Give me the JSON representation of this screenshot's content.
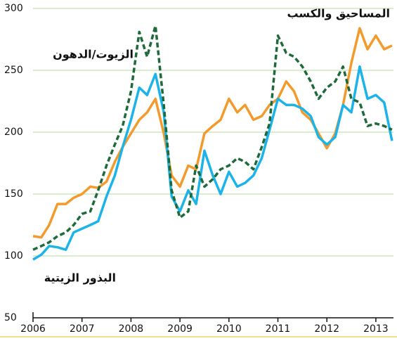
{
  "chart_data": {
    "type": "line",
    "x": [
      2006.0,
      2006.17,
      2006.33,
      2006.5,
      2006.67,
      2006.83,
      2007.0,
      2007.17,
      2007.33,
      2007.5,
      2007.67,
      2007.83,
      2008.0,
      2008.17,
      2008.33,
      2008.5,
      2008.67,
      2008.83,
      2009.0,
      2009.17,
      2009.33,
      2009.5,
      2009.67,
      2009.83,
      2010.0,
      2010.17,
      2010.33,
      2010.5,
      2010.67,
      2010.83,
      2011.0,
      2011.17,
      2011.33,
      2011.5,
      2011.67,
      2011.83,
      2012.0,
      2012.17,
      2012.33,
      2012.5,
      2012.67,
      2012.83,
      2013.0,
      2013.17,
      2013.33
    ],
    "series": [
      {
        "name": "الزيوت/الدهون",
        "color": "#f39a2c",
        "dashed": false,
        "values": [
          116,
          115,
          125,
          142,
          142,
          147,
          150,
          156,
          155,
          160,
          176,
          188,
          199,
          210,
          216,
          227,
          199,
          165,
          156,
          173,
          170,
          199,
          205,
          210,
          227,
          216,
          222,
          210,
          213,
          222,
          227,
          241,
          233,
          216,
          210,
          199,
          187,
          199,
          222,
          256,
          284,
          267,
          278,
          267,
          270
        ]
      },
      {
        "name": "البذور الزيتية",
        "color": "#1cb3e8",
        "dashed": false,
        "values": [
          97,
          101,
          108,
          107,
          105,
          119,
          122,
          125,
          128,
          148,
          165,
          188,
          210,
          236,
          230,
          247,
          216,
          148,
          136,
          153,
          142,
          185,
          165,
          150,
          168,
          156,
          159,
          165,
          179,
          202,
          227,
          222,
          222,
          219,
          213,
          196,
          190,
          196,
          222,
          216,
          253,
          227,
          230,
          224,
          193
        ]
      },
      {
        "name": "المساحيق والكسب",
        "color": "#1e6a3a",
        "dashed": true,
        "values": [
          105,
          108,
          111,
          116,
          119,
          125,
          134,
          136,
          153,
          173,
          190,
          205,
          233,
          281,
          261,
          286,
          222,
          153,
          131,
          136,
          173,
          156,
          162,
          170,
          173,
          179,
          176,
          170,
          188,
          207,
          278,
          264,
          261,
          253,
          241,
          227,
          236,
          241,
          253,
          227,
          224,
          205,
          207,
          205,
          202
        ]
      }
    ],
    "xlim": [
      2006,
      2013.36
    ],
    "xticks": [
      2006,
      2007,
      2008,
      2009,
      2010,
      2011,
      2012,
      2013
    ],
    "ylim": [
      50,
      300
    ],
    "yticks": [
      50,
      100,
      150,
      200,
      250,
      300
    ],
    "grid": true
  }
}
